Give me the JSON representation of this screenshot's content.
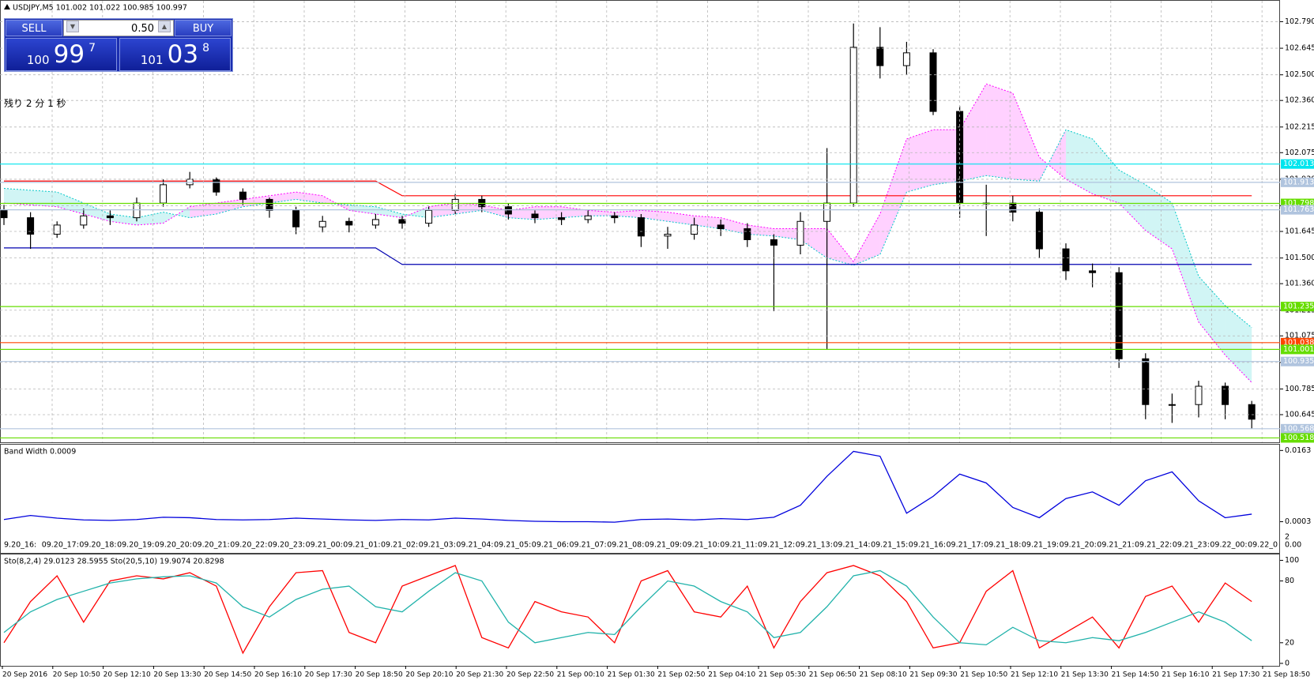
{
  "chart_data": [
    {
      "type": "candlestick",
      "title": "USDJPY,M5  101.002 101.022 100.985 100.997",
      "ylim": [
        100.494,
        102.904
      ],
      "yticks": [
        {
          "value": 102.79,
          "label": "102.790"
        },
        102.645,
        {
          "value": 102.5,
          "label": "102.500"
        },
        {
          "value": 102.36,
          "label": "102.360"
        },
        102.215,
        102.075,
        {
          "value": 101.93,
          "label": "101.930"
        },
        101.785,
        101.645,
        {
          "value": 101.5,
          "label": "101.500"
        },
        {
          "value": 101.36,
          "label": "101.360"
        },
        101.215,
        101.075,
        {
          "value": 100.93,
          "label": "100.930"
        },
        100.785,
        100.645
      ],
      "grid": true,
      "candles": {
        "open": [
          101.76,
          101.72,
          101.63,
          101.68,
          101.73,
          101.72,
          101.8,
          101.9,
          101.93,
          101.86,
          101.82,
          101.76,
          101.67,
          101.7,
          101.68,
          101.71,
          101.69,
          101.76,
          101.82,
          101.78,
          101.74,
          101.72,
          101.71,
          101.73,
          101.72,
          101.62,
          101.63,
          101.68,
          101.66,
          101.6,
          101.57,
          101.7,
          101.8,
          102.65,
          102.55,
          102.62,
          102.3,
          101.8,
          101.8,
          101.75,
          101.55,
          101.43,
          101.42,
          100.95,
          100.7,
          100.7,
          100.8,
          100.7
        ],
        "high": [
          101.79,
          101.75,
          101.7,
          101.77,
          101.76,
          101.83,
          101.93,
          101.97,
          101.94,
          101.88,
          101.83,
          101.78,
          101.73,
          101.72,
          101.74,
          101.73,
          101.78,
          101.85,
          101.84,
          101.8,
          101.76,
          101.75,
          101.76,
          101.75,
          101.74,
          101.67,
          101.72,
          101.71,
          101.69,
          101.63,
          101.75,
          102.1,
          102.78,
          102.76,
          102.68,
          102.64,
          102.33,
          101.9,
          101.84,
          101.77,
          101.58,
          101.47,
          101.45,
          100.98,
          100.76,
          100.83,
          100.82,
          100.72
        ],
        "low": [
          101.68,
          101.55,
          101.61,
          101.66,
          101.68,
          101.7,
          101.78,
          101.88,
          101.84,
          101.79,
          101.72,
          101.63,
          101.64,
          101.64,
          101.66,
          101.66,
          101.67,
          101.74,
          101.75,
          101.71,
          101.69,
          101.68,
          101.69,
          101.69,
          101.56,
          101.55,
          101.6,
          101.62,
          101.56,
          101.21,
          101.52,
          101.0,
          101.78,
          102.48,
          102.5,
          102.28,
          101.72,
          101.62,
          101.7,
          101.5,
          101.38,
          101.34,
          100.9,
          100.62,
          100.6,
          100.63,
          100.62,
          100.57
        ],
        "close": [
          101.72,
          101.63,
          101.68,
          101.73,
          101.72,
          101.8,
          101.9,
          101.93,
          101.86,
          101.82,
          101.76,
          101.67,
          101.7,
          101.68,
          101.71,
          101.69,
          101.76,
          101.82,
          101.78,
          101.74,
          101.72,
          101.71,
          101.73,
          101.72,
          101.62,
          101.63,
          101.68,
          101.66,
          101.6,
          101.57,
          101.7,
          101.8,
          102.65,
          102.55,
          102.62,
          102.3,
          101.8,
          101.8,
          101.75,
          101.55,
          101.43,
          101.42,
          100.95,
          100.7,
          100.7,
          100.8,
          100.7,
          100.62
        ]
      },
      "cloud": {
        "span_a": {
          "color": "#00c8c8",
          "values": [
            101.88,
            101.87,
            101.86,
            101.8,
            101.74,
            101.72,
            101.75,
            101.72,
            101.74,
            101.78,
            101.8,
            101.82,
            101.8,
            101.79,
            101.78,
            101.74,
            101.72,
            101.74,
            101.76,
            101.72,
            101.71,
            101.72,
            101.73,
            101.73,
            101.72,
            101.7,
            101.68,
            101.66,
            101.63,
            101.62,
            101.6,
            101.5,
            101.46,
            101.52,
            101.86,
            101.9,
            101.92,
            101.95,
            101.93,
            101.92,
            102.2,
            102.15,
            101.98,
            101.9,
            101.8,
            101.4,
            101.24,
            101.12
          ]
        },
        "span_b": {
          "color": "#ff00ff",
          "values": [
            101.8,
            101.79,
            101.78,
            101.74,
            101.7,
            101.68,
            101.69,
            101.78,
            101.8,
            101.82,
            101.84,
            101.86,
            101.84,
            101.76,
            101.74,
            101.72,
            101.78,
            101.8,
            101.79,
            101.76,
            101.78,
            101.78,
            101.76,
            101.75,
            101.76,
            101.75,
            101.73,
            101.72,
            101.68,
            101.66,
            101.66,
            101.66,
            101.48,
            101.74,
            102.15,
            102.2,
            102.2,
            102.45,
            102.4,
            102.05,
            101.93,
            101.85,
            101.8,
            101.65,
            101.55,
            101.15,
            100.97,
            100.82
          ]
        }
      },
      "overlays": [
        {
          "color": "#ff0000",
          "values": [
            101.92,
            101.92,
            101.92,
            101.92,
            101.92,
            101.92,
            101.92,
            101.92,
            101.92,
            101.92,
            101.92,
            101.92,
            101.92,
            101.92,
            101.92,
            101.84,
            101.84,
            101.84,
            101.84,
            101.84,
            101.84,
            101.84,
            101.84,
            101.84,
            101.84,
            101.84,
            101.84,
            101.84,
            101.84,
            101.84,
            101.84,
            101.84,
            101.84,
            101.84,
            101.84,
            101.84,
            101.84,
            101.84,
            101.84,
            101.84,
            101.84,
            101.84,
            101.84,
            101.84,
            101.84,
            101.84,
            101.84,
            101.84
          ]
        },
        {
          "color": "#0000b0",
          "values": [
            101.555,
            101.555,
            101.555,
            101.555,
            101.555,
            101.555,
            101.555,
            101.555,
            101.555,
            101.555,
            101.555,
            101.555,
            101.555,
            101.555,
            101.555,
            101.465,
            101.465,
            101.465,
            101.465,
            101.465,
            101.465,
            101.465,
            101.465,
            101.465,
            101.465,
            101.465,
            101.465,
            101.465,
            101.465,
            101.465,
            101.465,
            101.465,
            101.465,
            101.465,
            101.465,
            101.465,
            101.465,
            101.465,
            101.465,
            101.465,
            101.465,
            101.465,
            101.465,
            101.465,
            101.465,
            101.465,
            101.465,
            101.465
          ]
        }
      ],
      "levels": [
        {
          "value": 102.013,
          "color": "#00e5ee"
        },
        {
          "value": 101.913,
          "color": "#b0c4de"
        },
        {
          "value": 101.798,
          "color": "#66dd00"
        },
        {
          "value": 101.763,
          "color": "#b0c4de"
        },
        {
          "value": 101.235,
          "color": "#66dd00"
        },
        {
          "value": 101.038,
          "color": "#ff4500"
        },
        {
          "value": 101.001,
          "color": "#66dd00"
        },
        {
          "value": 100.935,
          "color": "#b0c4de"
        },
        {
          "value": 100.568,
          "color": "#b0c4de"
        },
        {
          "value": 100.518,
          "color": "#66dd00"
        }
      ]
    },
    {
      "type": "line",
      "title": "Band Width 0.0009",
      "ylim": [
        -0.0067,
        0.0176
      ],
      "yticks": [
        0.0163,
        0.0003
      ],
      "annotations": [
        "2",
        "0.00"
      ],
      "time_labels": [
        "9.20_16:",
        "09.20_17:",
        "09.20_18:",
        "09.20_19:",
        "09.20_20:",
        "09.20_21:",
        "09.20_22:",
        "09.20_23:",
        "09.21_00:",
        "09.21_01:",
        "09.21_02:",
        "09.21_03:",
        "09.21_04:",
        "09.21_05:",
        "09.21_06:",
        "09.21_07:",
        "09.21_08:",
        "09.21_09:",
        "09.21_10:",
        "09.21_11:",
        "09.21_12:",
        "09.21_13:",
        "09.21_14:",
        "09.21_15:",
        "09.21_16:",
        "09.21_17:",
        "09.21_18:",
        "09.21_19:",
        "09.21_20:",
        "09.21_21:",
        "09.21_22:",
        "09.21_23:",
        "09.22_00:",
        "09.22_0"
      ],
      "series": [
        {
          "color": "#0000dd",
          "values": [
            0.0008,
            0.0017,
            0.0011,
            0.0007,
            0.0006,
            0.0008,
            0.0013,
            0.0012,
            0.0008,
            0.0007,
            0.0008,
            0.0011,
            0.0009,
            0.0007,
            0.0006,
            0.0008,
            0.0007,
            0.0011,
            0.0009,
            0.0006,
            0.0004,
            0.0003,
            0.0003,
            0.0002,
            0.0008,
            0.0009,
            0.0007,
            0.001,
            0.0008,
            0.0013,
            0.004,
            0.0105,
            0.0161,
            0.015,
            0.0022,
            0.006,
            0.011,
            0.009,
            0.0035,
            0.0012,
            0.0055,
            0.007,
            0.004,
            0.0095,
            0.0115,
            0.005,
            0.0012,
            0.002
          ]
        }
      ]
    },
    {
      "type": "line",
      "title": "Sto(8,2,4) 29.0123 28.5955  Sto(20,5,10) 19.9074 20.8298",
      "ylim": [
        -2.4,
        105.7
      ],
      "yticks": [
        100,
        80,
        20,
        0
      ],
      "time_labels": [
        "20 Sep 2016",
        "20 Sep 10:50",
        "20 Sep 12:10",
        "20 Sep 13:30",
        "20 Sep 14:50",
        "20 Sep 16:10",
        "20 Sep 17:30",
        "20 Sep 18:50",
        "20 Sep 20:10",
        "20 Sep 21:30",
        "20 Sep 22:50",
        "21 Sep 00:10",
        "21 Sep 01:30",
        "21 Sep 02:50",
        "21 Sep 04:10",
        "21 Sep 05:30",
        "21 Sep 06:50",
        "21 Sep 08:10",
        "21 Sep 09:30",
        "21 Sep 10:50",
        "21 Sep 12:10",
        "21 Sep 13:30",
        "21 Sep 14:50",
        "21 Sep 16:10",
        "21 Sep 17:30",
        "21 Sep 18:50"
      ],
      "series": [
        {
          "color": "#ff0000",
          "values": [
            20,
            60,
            85,
            40,
            80,
            85,
            82,
            88,
            75,
            10,
            55,
            88,
            90,
            30,
            20,
            75,
            85,
            95,
            25,
            15,
            60,
            50,
            45,
            20,
            80,
            90,
            50,
            45,
            75,
            15,
            60,
            88,
            95,
            85,
            60,
            15,
            20,
            70,
            90,
            15,
            30,
            45,
            15,
            65,
            75,
            40,
            78,
            60
          ]
        },
        {
          "color": "#20b2aa",
          "values": [
            30,
            50,
            62,
            70,
            78,
            82,
            84,
            85,
            78,
            55,
            45,
            62,
            72,
            75,
            55,
            50,
            70,
            88,
            80,
            40,
            20,
            25,
            30,
            28,
            55,
            80,
            75,
            60,
            50,
            25,
            30,
            55,
            85,
            90,
            75,
            45,
            20,
            18,
            35,
            22,
            20,
            25,
            22,
            30,
            40,
            50,
            40,
            22
          ]
        }
      ]
    }
  ],
  "trade_panel": {
    "sell": "SELL",
    "lot": "0.50",
    "buy": "BUY",
    "bid": {
      "big": "100",
      "main": "99",
      "pip": "7"
    },
    "ask": {
      "big": "101",
      "main": "03",
      "pip": "8"
    }
  },
  "timer": "残り 2 分 1 秒"
}
